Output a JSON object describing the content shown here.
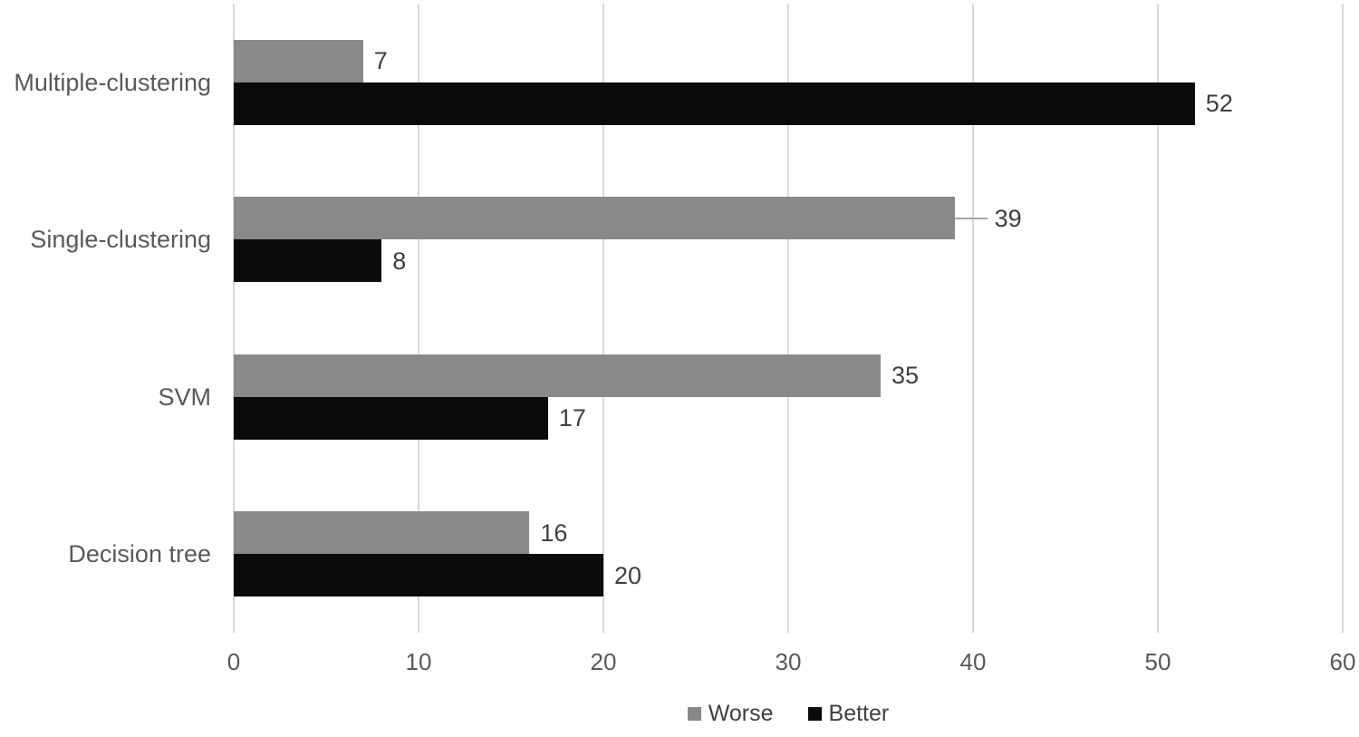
{
  "chart_data": {
    "type": "bar",
    "orientation": "horizontal",
    "title": "",
    "xlabel": "",
    "ylabel": "",
    "categories": [
      "Multiple-clustering",
      "Single-clustering",
      "SVM",
      "Decision tree"
    ],
    "series": [
      {
        "name": "Worse",
        "color": "#898989",
        "values": [
          7,
          39,
          35,
          16
        ]
      },
      {
        "name": "Better",
        "color": "#0b0b0b",
        "values": [
          52,
          8,
          17,
          20
        ]
      }
    ],
    "data_labels": [
      "7",
      "52",
      "39",
      "8",
      "35",
      "17",
      "16",
      "20"
    ],
    "xlim": [
      0,
      60
    ],
    "x_ticks": [
      "0",
      "10",
      "20",
      "30",
      "40",
      "50",
      "60"
    ],
    "grid": "vertical",
    "legend_position": "bottom-center",
    "callout": {
      "series_index": 0,
      "category_index": 1,
      "note": "label 39 drawn with leader line past gridline"
    },
    "colors": {
      "worse_bar": "#898989",
      "better_bar": "#0b0b0b",
      "gridline": "#d9d9d9",
      "axis_text": "#595959",
      "data_label_text": "#3f3f3f",
      "leader_line": "#a6a6a6",
      "background": "#ffffff"
    }
  }
}
